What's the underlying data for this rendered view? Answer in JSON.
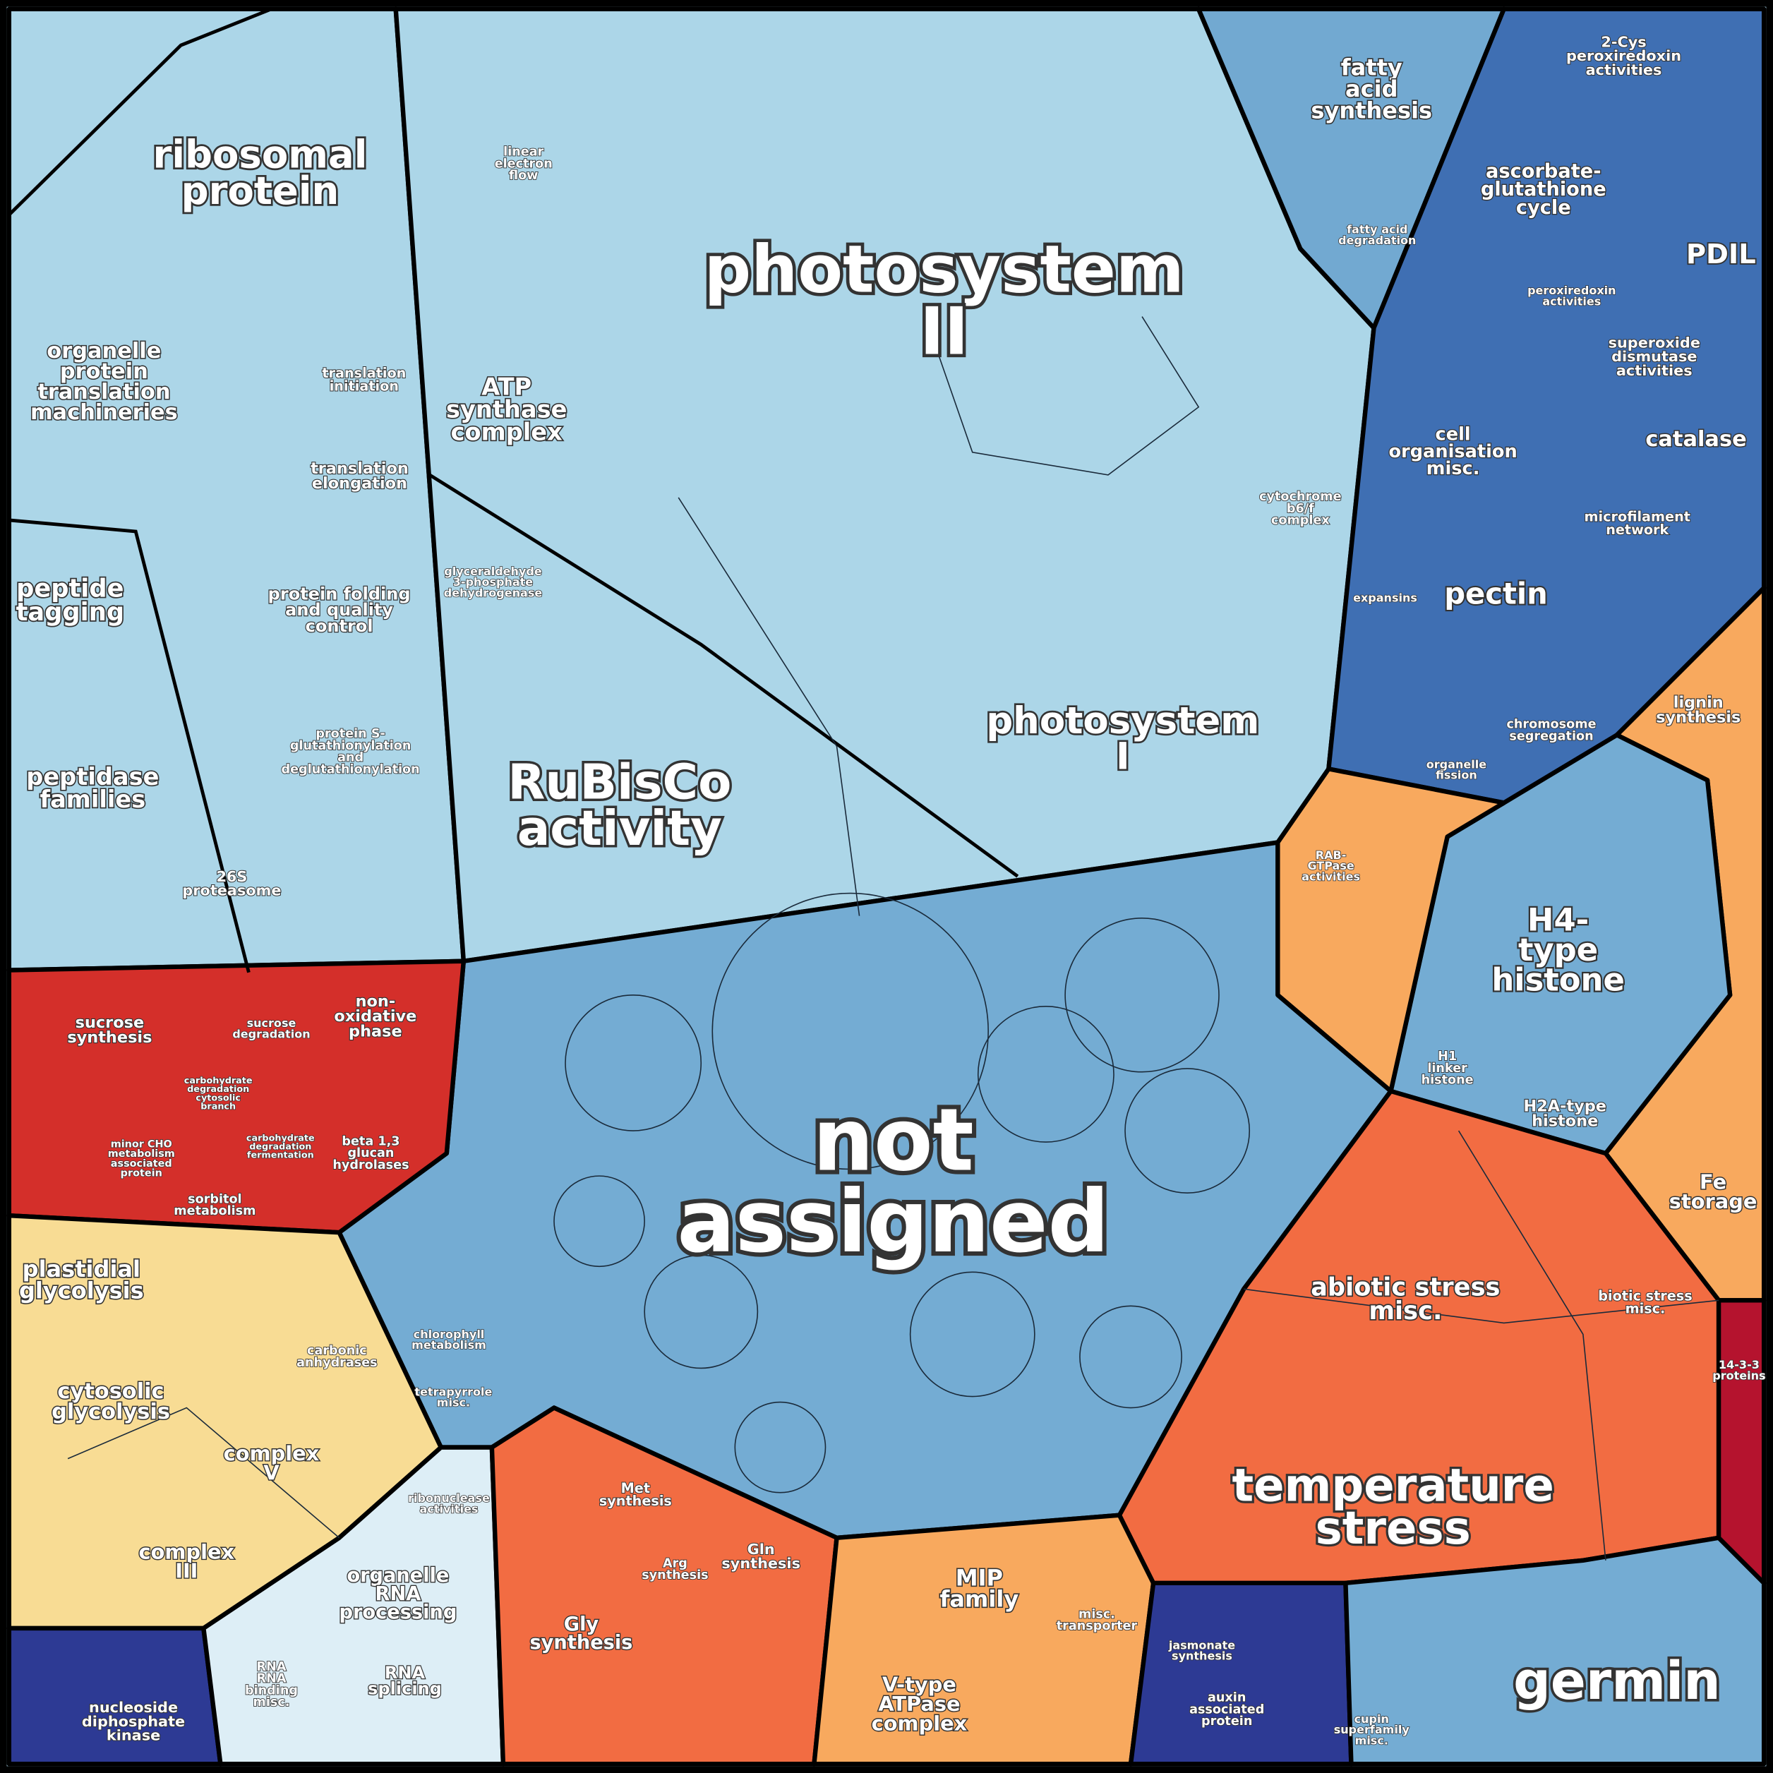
{
  "labels": [
    {
      "lines": [
        "ribosomal",
        "protein"
      ]
    },
    {
      "lines": [
        "organelle",
        "protein",
        "translation",
        "machineries"
      ]
    },
    {
      "lines": [
        "peptide",
        "tagging"
      ]
    },
    {
      "lines": [
        "peptidase",
        "families"
      ]
    },
    {
      "lines": [
        "protein folding",
        "and quality",
        "control"
      ]
    },
    {
      "lines": [
        "protein S-",
        "glutathionylation",
        "and",
        "deglutathionylation"
      ]
    },
    {
      "lines": [
        "26S",
        "proteasome"
      ]
    },
    {
      "lines": [
        "translation",
        "initiation"
      ]
    },
    {
      "lines": [
        "translation",
        "elongation"
      ]
    },
    {
      "lines": [
        "ATP",
        "synthase",
        "complex"
      ]
    },
    {
      "lines": [
        "linear",
        "electron",
        "flow"
      ]
    },
    {
      "lines": [
        "photosystem",
        "II"
      ]
    },
    {
      "lines": [
        "cytochrome",
        "b6/f",
        "complex"
      ]
    },
    {
      "lines": [
        "glyceraldehyde",
        "3-phosphate",
        "dehydrogenase"
      ]
    },
    {
      "lines": [
        "RuBisCo",
        "activity"
      ]
    },
    {
      "lines": [
        "photosystem",
        "I"
      ]
    },
    {
      "lines": [
        "fatty",
        "acid",
        "synthesis"
      ]
    },
    {
      "lines": [
        "fatty acid",
        "degradation"
      ]
    },
    {
      "lines": [
        "2-Cys",
        "peroxiredoxin",
        "activities"
      ]
    },
    {
      "lines": [
        "ascorbate-",
        "glutathione",
        "cycle"
      ]
    },
    {
      "lines": [
        "PDIL"
      ]
    },
    {
      "lines": [
        "peroxiredoxin",
        "activities"
      ]
    },
    {
      "lines": [
        "superoxide",
        "dismutase",
        "activities"
      ]
    },
    {
      "lines": [
        "catalase"
      ]
    },
    {
      "lines": [
        "cell",
        "organisation",
        "misc."
      ]
    },
    {
      "lines": [
        "microfilament",
        "network"
      ]
    },
    {
      "lines": [
        "pectin"
      ]
    },
    {
      "lines": [
        "expansins"
      ]
    },
    {
      "lines": [
        "lignin",
        "synthesis"
      ]
    },
    {
      "lines": [
        "chromosome",
        "segregation"
      ]
    },
    {
      "lines": [
        "organelle",
        "fission"
      ]
    },
    {
      "lines": [
        "H4-",
        "type",
        "histone"
      ]
    },
    {
      "lines": [
        "H2A-type",
        "histone"
      ]
    },
    {
      "lines": [
        "H1",
        "linker",
        "histone"
      ]
    },
    {
      "lines": [
        "Fe",
        "storage"
      ]
    },
    {
      "lines": [
        "abiotic stress",
        "misc."
      ]
    },
    {
      "lines": [
        "biotic stress",
        "misc."
      ]
    },
    {
      "lines": [
        "temperature",
        "stress"
      ]
    },
    {
      "lines": [
        "germin"
      ]
    },
    {
      "lines": [
        "14-3-3",
        "proteins"
      ]
    },
    {
      "lines": [
        "not",
        "assigned"
      ]
    },
    {
      "lines": [
        "sucrose",
        "synthesis"
      ]
    },
    {
      "lines": [
        "non-",
        "oxidative",
        "phase"
      ]
    },
    {
      "lines": [
        "sucrose",
        "degradation"
      ]
    },
    {
      "lines": [
        "carbohydrate",
        "degradation",
        "cytosolic",
        "branch"
      ]
    },
    {
      "lines": [
        "minor CHO",
        "metabolism",
        "associated",
        "protein"
      ]
    },
    {
      "lines": [
        "carbohydrate",
        "degradation",
        "fermentation"
      ]
    },
    {
      "lines": [
        "beta 1,3",
        "glucan",
        "hydrolases"
      ]
    },
    {
      "lines": [
        "sorbitol",
        "metabolism"
      ]
    },
    {
      "lines": [
        "plastidial",
        "glycolysis"
      ]
    },
    {
      "lines": [
        "cytosolic",
        "glycolysis"
      ]
    },
    {
      "lines": [
        "complex",
        "V"
      ]
    },
    {
      "lines": [
        "complex",
        "III"
      ]
    },
    {
      "lines": [
        "carbonic",
        "anhydrases"
      ]
    },
    {
      "lines": [
        "organelle",
        "RNA",
        "processing"
      ]
    },
    {
      "lines": [
        "ribonuclease",
        "activities"
      ]
    },
    {
      "lines": [
        "RNA",
        "RNA",
        "binding",
        "misc."
      ]
    },
    {
      "lines": [
        "RNA",
        "splicing"
      ]
    },
    {
      "lines": [
        "nucleoside",
        "diphosphate",
        "kinase"
      ]
    },
    {
      "lines": [
        "Gly",
        "synthesis"
      ]
    },
    {
      "lines": [
        "Met",
        "synthesis"
      ]
    },
    {
      "lines": [
        "Arg",
        "synthesis"
      ]
    },
    {
      "lines": [
        "Gln",
        "synthesis"
      ]
    },
    {
      "lines": [
        "MIP",
        "family"
      ]
    },
    {
      "lines": [
        "V-type",
        "ATPase",
        "complex"
      ]
    },
    {
      "lines": [
        "misc.",
        "transporter"
      ]
    },
    {
      "lines": [
        "auxin",
        "associated",
        "protein"
      ]
    },
    {
      "lines": [
        "jasmonate",
        "synthesis"
      ]
    },
    {
      "lines": [
        "cupin",
        "superfamily",
        "misc."
      ]
    },
    {
      "lines": [
        "chlorophyll",
        "metabolism"
      ]
    },
    {
      "lines": [
        "tetrapyrrole",
        "misc."
      ]
    },
    {
      "lines": [
        "RAB-",
        "GTPase",
        "activities"
      ]
    }
  ]
}
